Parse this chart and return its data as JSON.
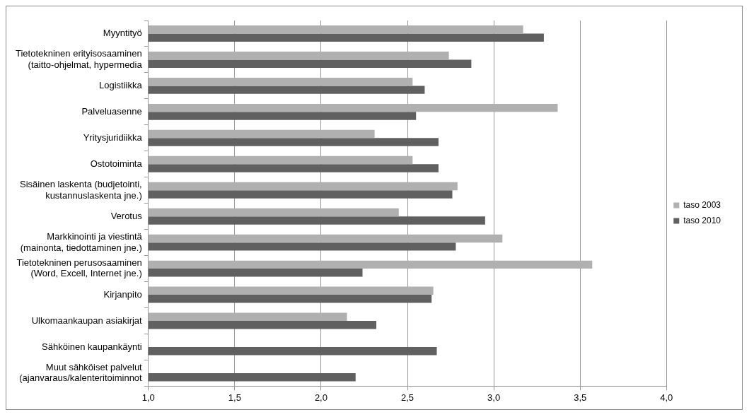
{
  "chart_data": {
    "type": "bar",
    "orientation": "horizontal",
    "categories": [
      "Myyntityö",
      "Tietotekninen erityisosaaminen (taitto-ohjelmat, hypermedia",
      "Logistiikka",
      "Palveluasenne",
      "Yritysjuridiikka",
      "Ostotoiminta",
      "Sisäinen laskenta (budjetointi, kustannuslaskenta jne.)",
      "Verotus",
      "Markkinointi ja viestintä (mainonta, tiedottaminen jne.)",
      "Tietotekninen perusosaaminen (Word, Excell, Internet jne.)",
      "Kirjanpito",
      "Ulkomaankaupan asiakirjat",
      "Sähköinen kaupankäynti",
      "Muut sähköiset palvelut (ajanvaraus/kalenteritoiminnot"
    ],
    "series": [
      {
        "name": "taso 2003",
        "color": "#b0b0b0",
        "values": [
          3.17,
          2.74,
          2.53,
          3.37,
          2.31,
          2.53,
          2.79,
          2.45,
          3.05,
          3.57,
          2.65,
          2.15,
          null,
          null
        ]
      },
      {
        "name": "taso 2010",
        "color": "#606060",
        "values": [
          3.29,
          2.87,
          2.6,
          2.55,
          2.68,
          2.68,
          2.76,
          2.95,
          2.78,
          2.24,
          2.64,
          2.32,
          2.67,
          2.2
        ]
      }
    ],
    "xlim": [
      1,
      4
    ],
    "xticks": [
      {
        "value": 1,
        "label": "1,0"
      },
      {
        "value": 1.5,
        "label": "1,5"
      },
      {
        "value": 2,
        "label": "2,0"
      },
      {
        "value": 2.5,
        "label": "2,5"
      },
      {
        "value": 3,
        "label": "3,0"
      },
      {
        "value": 3.5,
        "label": "3,5"
      },
      {
        "value": 4,
        "label": "4,0"
      }
    ],
    "grid": "x",
    "legend": "right"
  }
}
